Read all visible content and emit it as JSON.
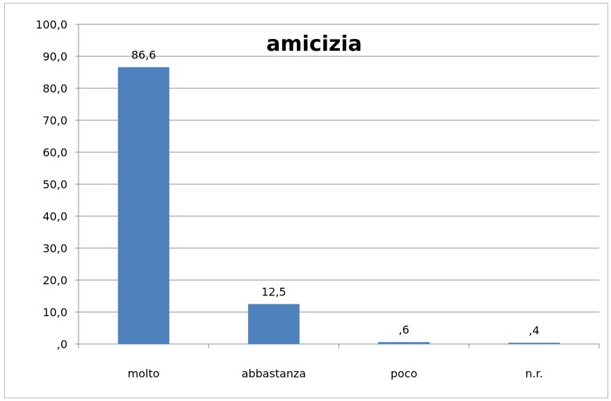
{
  "chart_data": {
    "type": "bar",
    "title": "amicizia",
    "categories": [
      "molto",
      "abbastanza",
      "poco",
      "n.r."
    ],
    "values": [
      86.6,
      12.5,
      0.6,
      0.4
    ],
    "value_labels": [
      "86,6",
      "12,5",
      ",6",
      ",4"
    ],
    "ylim": [
      0,
      100
    ],
    "yticks": [
      0,
      10,
      20,
      30,
      40,
      50,
      60,
      70,
      80,
      90,
      100
    ],
    "ytick_labels": [
      ",0",
      "10,0",
      "20,0",
      "30,0",
      "40,0",
      "50,0",
      "60,0",
      "70,0",
      "80,0",
      "90,0",
      "100,0"
    ],
    "grid": true,
    "legend": "none",
    "bar_color": "#4f81bd",
    "grid_color": "#8c8c8c"
  }
}
